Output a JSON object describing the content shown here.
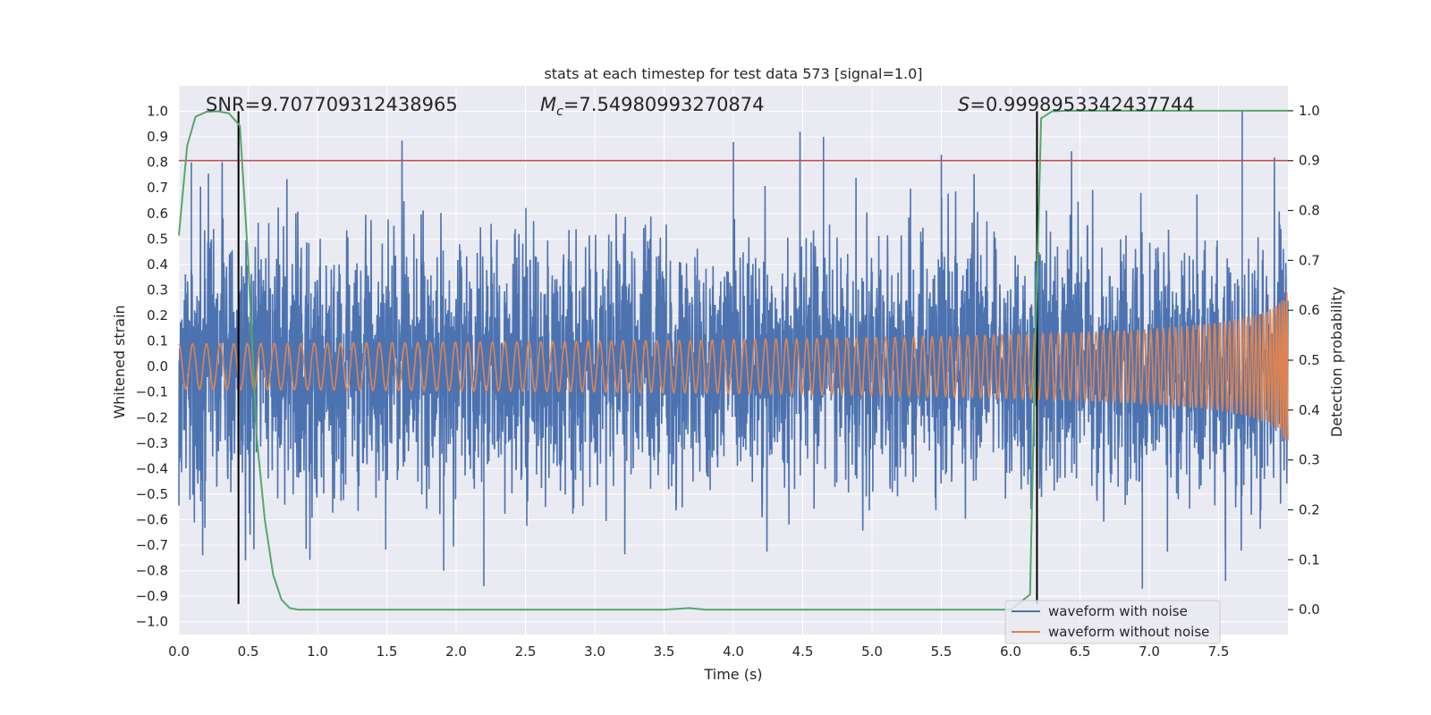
{
  "chart_data": {
    "type": "line",
    "title": "stats at each timestep for test data 573 [signal=1.0]",
    "xlabel": "Time (s)",
    "ylabel": "Whitened strain",
    "ylabel_right": "Detection probability",
    "xlim": [
      0,
      8
    ],
    "ylim": [
      -1.05,
      1.1
    ],
    "ylim_right": [
      -0.05,
      1.05
    ],
    "x_ticks": [
      0.0,
      0.5,
      1.0,
      1.5,
      2.0,
      2.5,
      3.0,
      3.5,
      4.0,
      4.5,
      5.0,
      5.5,
      6.0,
      6.5,
      7.0,
      7.5
    ],
    "x_tick_labels": [
      "0.0",
      "0.5",
      "1.0",
      "1.5",
      "2.0",
      "2.5",
      "3.0",
      "3.5",
      "4.0",
      "4.5",
      "5.0",
      "5.5",
      "6.0",
      "6.5",
      "7.0",
      "7.5"
    ],
    "y_ticks": [
      -1.0,
      -0.9,
      -0.8,
      -0.7,
      -0.6,
      -0.5,
      -0.4,
      -0.3,
      -0.2,
      -0.1,
      0.0,
      0.1,
      0.2,
      0.3,
      0.4,
      0.5,
      0.6,
      0.7,
      0.8,
      0.9,
      1.0
    ],
    "y_tick_labels": [
      "−1.0",
      "−0.9",
      "−0.8",
      "−0.7",
      "−0.6",
      "−0.5",
      "−0.4",
      "−0.3",
      "−0.2",
      "−0.1",
      "0.0",
      "0.1",
      "0.2",
      "0.3",
      "0.4",
      "0.5",
      "0.6",
      "0.7",
      "0.8",
      "0.9",
      "1.0"
    ],
    "y_right_ticks": [
      0.0,
      0.1,
      0.2,
      0.3,
      0.4,
      0.5,
      0.6,
      0.7,
      0.8,
      0.9,
      1.0
    ],
    "y_right_tick_labels": [
      "0.0",
      "0.1",
      "0.2",
      "0.3",
      "0.4",
      "0.5",
      "0.6",
      "0.7",
      "0.8",
      "0.9",
      "1.0"
    ],
    "annotations": {
      "snr": "SNR=9.707709312438965",
      "mc_prefix": "M",
      "mc_sub": "c",
      "mc_value": "=7.54980993270874",
      "s_prefix": "S",
      "s_value": "=0.9998953342437744"
    },
    "threshold_right": 0.9,
    "vertical_lines_x": [
      0.43,
      6.19
    ],
    "series": [
      {
        "name": "waveform with noise",
        "color": "#4c72b0",
        "envelope_max": 1.0,
        "noise_peaks": [
          {
            "x": 0.09,
            "y": 0.8
          },
          {
            "x": 4.0,
            "y": 0.88
          },
          {
            "x": 4.65,
            "y": 0.9
          },
          {
            "x": 5.5,
            "y": 0.83
          },
          {
            "x": 7.67,
            "y": 1.0
          },
          {
            "x": 6.95,
            "y": -0.87
          },
          {
            "x": 2.2,
            "y": -0.86
          },
          {
            "x": 1.91,
            "y": -0.8
          },
          {
            "x": 7.55,
            "y": -0.84
          }
        ]
      },
      {
        "name": "waveform without noise",
        "color": "#dd8452",
        "amplitude_start": 0.013,
        "amplitude_end": 0.29
      },
      {
        "name": "detection probability",
        "color": "#55a868",
        "axis": "right",
        "x": [
          0.0,
          0.06,
          0.12,
          0.2,
          0.28,
          0.36,
          0.44,
          0.5,
          0.56,
          0.62,
          0.68,
          0.74,
          0.8,
          0.86,
          1.0,
          2.0,
          3.0,
          3.5,
          3.68,
          3.8,
          4.5,
          5.0,
          5.5,
          6.0,
          6.14,
          6.18,
          6.22,
          6.3,
          6.4,
          7.0,
          8.0
        ],
        "y": [
          0.75,
          0.93,
          0.988,
          0.998,
          0.999,
          0.995,
          0.97,
          0.7,
          0.35,
          0.18,
          0.07,
          0.02,
          0.003,
          0.0,
          0.0,
          0.0,
          0.0,
          0.0,
          0.003,
          0.0,
          0.0,
          0.0,
          0.0,
          0.0,
          0.03,
          0.55,
          0.985,
          0.999,
          1.0,
          1.0,
          1.0
        ]
      }
    ],
    "legend": {
      "placement": "bottom-right",
      "entries": [
        {
          "label": "waveform with noise",
          "color": "#4c72b0"
        },
        {
          "label": "waveform without noise",
          "color": "#dd8452"
        }
      ]
    },
    "colors": {
      "background": "#eaeaf2",
      "grid": "#ffffff",
      "threshold": "#c44e52",
      "vline": "#000000"
    }
  }
}
